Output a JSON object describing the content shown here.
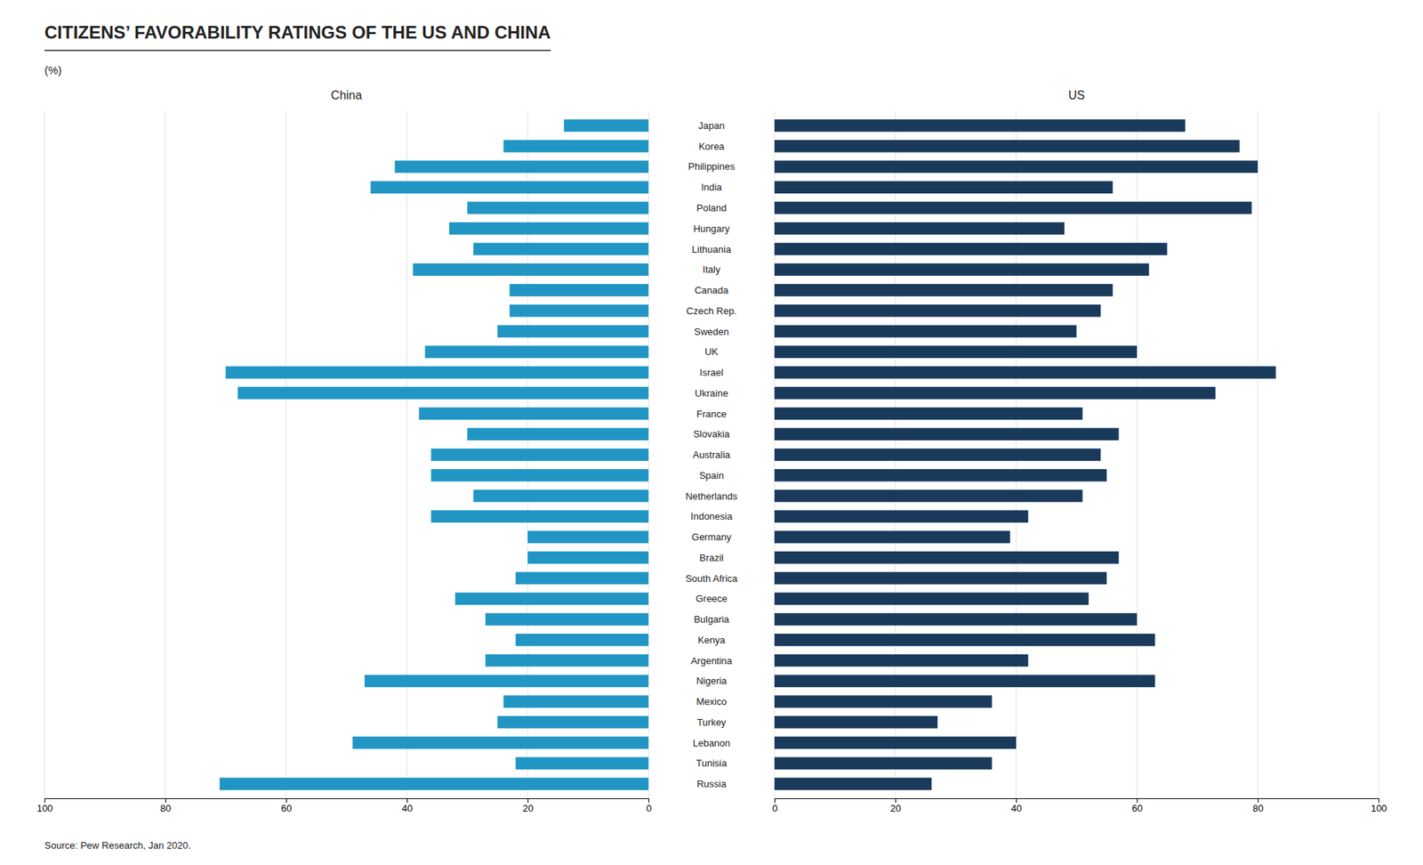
{
  "chart_data": {
    "type": "bar",
    "title": "CITIZENS’ FAVORABILITY RATINGS OF THE US AND CHINA",
    "source": "Source: Pew Research, Jan 2020.",
    "xlabel": "(%)",
    "orientation": "horizontal",
    "grid": true,
    "categories": [
      "Japan",
      "Korea",
      "Philippines",
      "India",
      "Poland",
      "Hungary",
      "Lithuania",
      "Italy",
      "Canada",
      "Czech Rep.",
      "Sweden",
      "UK",
      "Israel",
      "Ukraine",
      "France",
      "Slovakia",
      "Australia",
      "Spain",
      "Netherlands",
      "Indonesia",
      "Germany",
      "Brazil",
      "South Africa",
      "Greece",
      "Bulgaria",
      "Kenya",
      "Argentina",
      "Nigeria",
      "Mexico",
      "Turkey",
      "Lebanon",
      "Tunisia",
      "Russia"
    ],
    "series": [
      {
        "name": "China",
        "color": "#2196c4",
        "values": [
          14,
          24,
          42,
          46,
          30,
          33,
          29,
          39,
          23,
          23,
          25,
          37,
          70,
          68,
          38,
          30,
          36,
          36,
          29,
          36,
          20,
          20,
          22,
          32,
          27,
          22,
          27,
          47,
          24,
          25,
          49,
          22,
          71
        ]
      },
      {
        "name": "US",
        "color": "#1a3a5c",
        "values": [
          68,
          77,
          80,
          56,
          79,
          48,
          65,
          62,
          56,
          54,
          50,
          60,
          83,
          73,
          51,
          57,
          54,
          55,
          51,
          42,
          39,
          57,
          55,
          52,
          60,
          63,
          42,
          63,
          36,
          27,
          40,
          36,
          26
        ]
      }
    ],
    "xlim": [
      0,
      100
    ],
    "xticks": [
      0,
      20,
      40,
      60,
      80,
      100
    ]
  }
}
